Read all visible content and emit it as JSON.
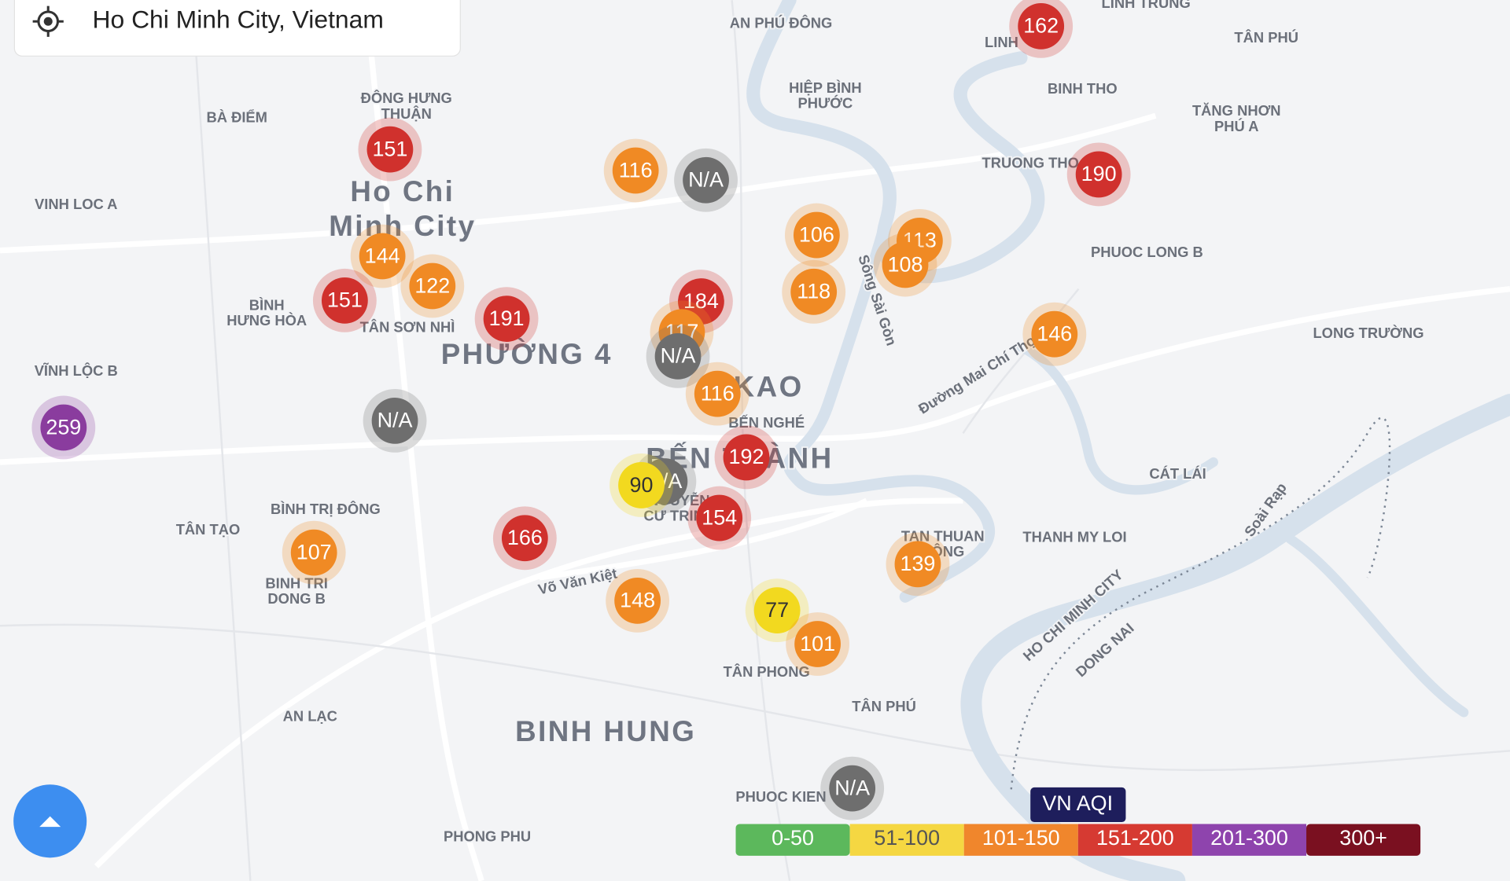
{
  "search": {
    "text": "Ho Chi Minh City, Vietnam"
  },
  "places": [
    "AN PHÚ ĐÔNG",
    "LINH TRUNG",
    "TÂN PHÚ",
    "LINH",
    "HIỆP BÌNH",
    "PHƯỚC",
    "BINH THO",
    "TĂNG NHƠN",
    "PHÚ A",
    "ĐÔNG HƯNG",
    "THUẬN",
    "BÀ ĐIỂM",
    "VINH LOC A",
    "Ho Chi",
    "Minh City",
    "TRUONG THO",
    "PHUOC LONG B",
    "BÌNH",
    "HƯNG HÒA",
    "TÂN SƠN NHÌ",
    "PHƯỜNG 4",
    "VĨNH LỘC B",
    "LONG TRƯỜNG",
    "KAO",
    "BẾN NGHÉ",
    "BẾN THÀNH",
    "Đường Mai Chí Thọ",
    "Sông Sài Gòn",
    "CÁT LÁI",
    "BÌNH TRỊ ĐÔNG",
    "TÂN TẠO",
    "NGUYỄN",
    "CƯ TRINH",
    "TAN THUAN",
    "ĐÔNG",
    "THANH MY LOI",
    "BINH TRI",
    "DONG B",
    "Võ Văn Kiệt",
    "Soài Rạp",
    "HO CHI MINH CITY",
    "DONG NAI",
    "TÂN PHONG",
    "AN LẠC",
    "TÂN PHÚ",
    "BINH HUNG",
    "PHUOC KIEN",
    "PHONG PHU"
  ],
  "markers": [
    "162",
    "151",
    "116",
    "N/A",
    "190",
    "106",
    "113",
    "108",
    "118",
    "144",
    "122",
    "151",
    "191",
    "184",
    "117",
    "N/A",
    "146",
    "116",
    "259",
    "N/A",
    "192",
    "N/A",
    "90",
    "154",
    "166",
    "107",
    "139",
    "148",
    "77",
    "101",
    "N/A"
  ],
  "legend": {
    "title": "VN AQI",
    "items": [
      "0-50",
      "51-100",
      "101-150",
      "151-200",
      "201-300",
      "300+"
    ]
  }
}
